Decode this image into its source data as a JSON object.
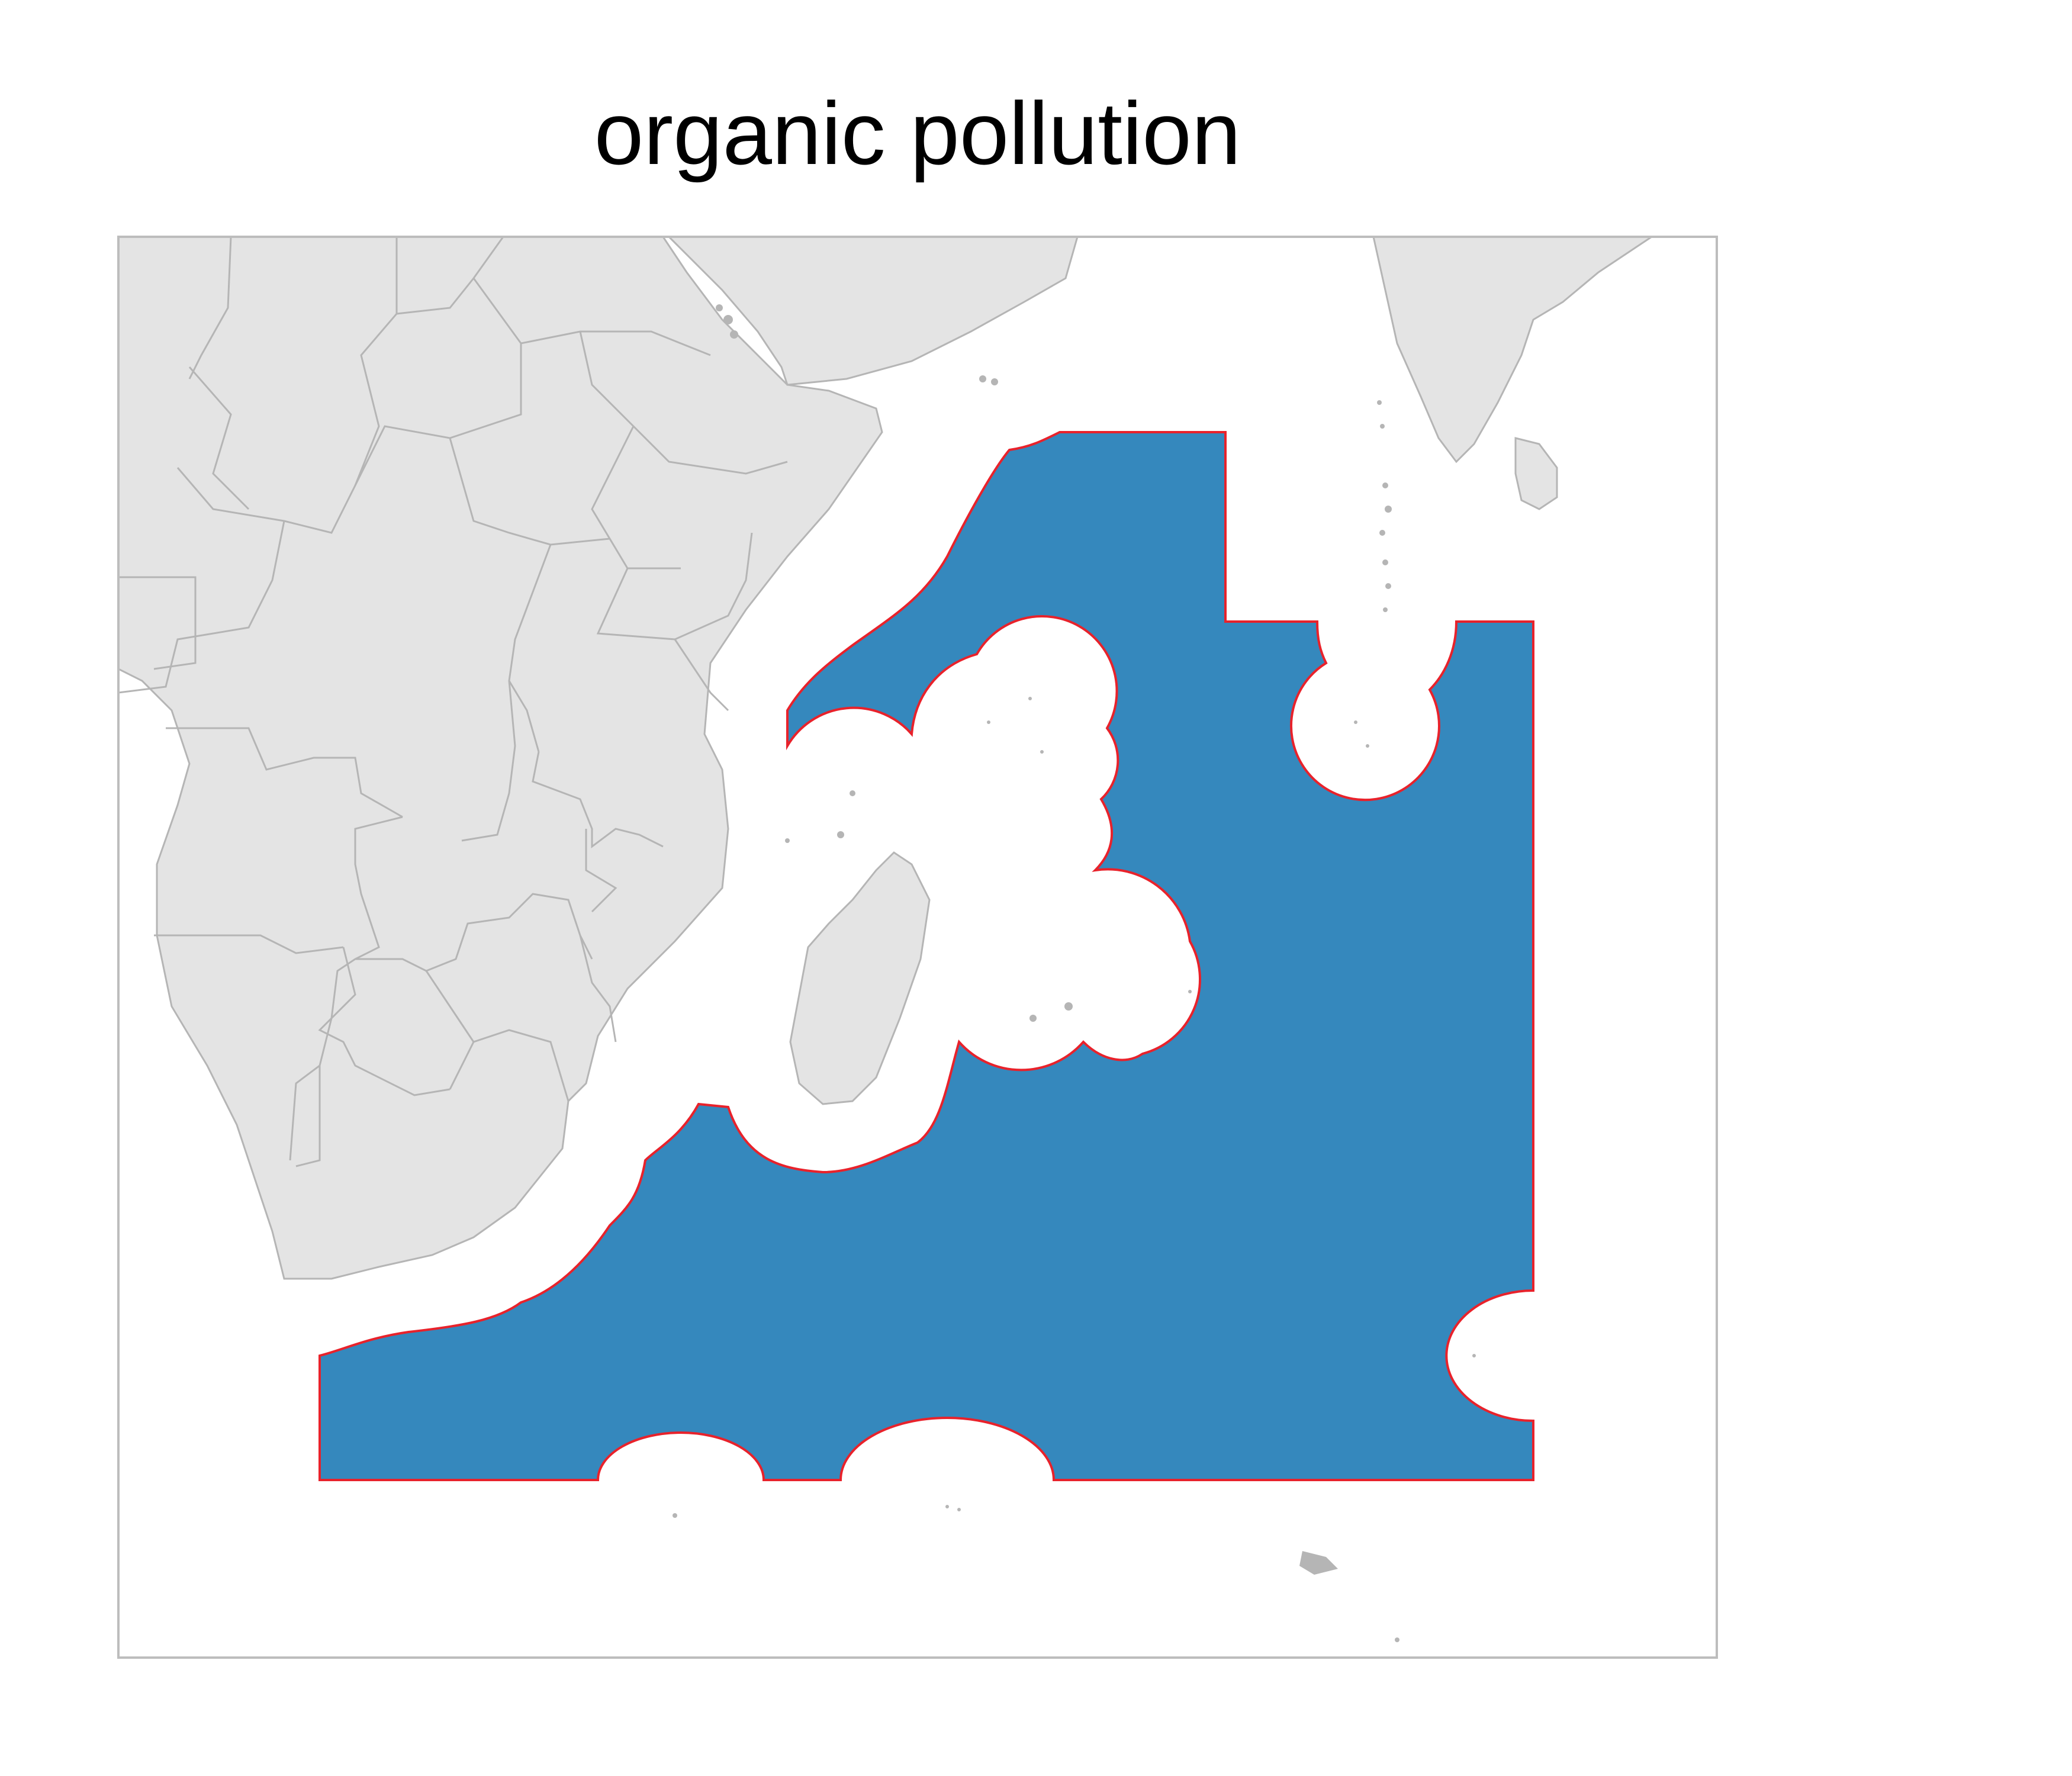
{
  "title": "organic pollution",
  "colors": {
    "land": "#e4e4e4",
    "border": "#b5b5b5",
    "frame": "#bdbdbd",
    "zone_fill": "#3588bd",
    "zone_outline": "#e8222b"
  }
}
